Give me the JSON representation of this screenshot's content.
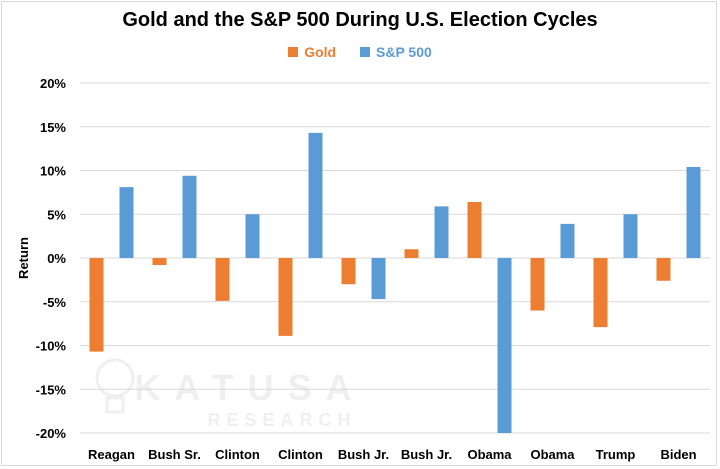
{
  "colors": {
    "gold": "#ed7d31",
    "sp500": "#5b9bd5",
    "grid": "#d9d9d9"
  },
  "chart_data": {
    "type": "bar",
    "title": "Gold and the S&P 500 During U.S. Election Cycles",
    "xlabel": "",
    "ylabel": "Return",
    "ylim": [
      -20,
      20
    ],
    "yticks": [
      "20%",
      "15%",
      "10%",
      "5%",
      "0%",
      "-5%",
      "-10%",
      "-15%",
      "-20%"
    ],
    "ytick_values": [
      20,
      15,
      10,
      5,
      0,
      -5,
      -10,
      -15,
      -20
    ],
    "grid": true,
    "legend": "top-center",
    "categories": [
      "Reagan",
      "Bush Sr.",
      "Clinton",
      "Clinton",
      "Bush Jr.",
      "Bush Jr.",
      "Obama",
      "Obama",
      "Trump",
      "Biden"
    ],
    "series": [
      {
        "name": "Gold",
        "color": "#ed7d31",
        "values": [
          -10.7,
          -0.8,
          -4.9,
          -8.9,
          -3.0,
          1.0,
          6.4,
          -6.0,
          -7.9,
          -2.6
        ]
      },
      {
        "name": "S&P 500",
        "color": "#5b9bd5",
        "values": [
          8.1,
          9.4,
          5.0,
          14.3,
          -4.7,
          5.9,
          -20.0,
          3.9,
          5.0,
          10.4
        ]
      }
    ]
  },
  "watermark": {
    "brand": "KATUSA",
    "sub": "RESEARCH"
  }
}
